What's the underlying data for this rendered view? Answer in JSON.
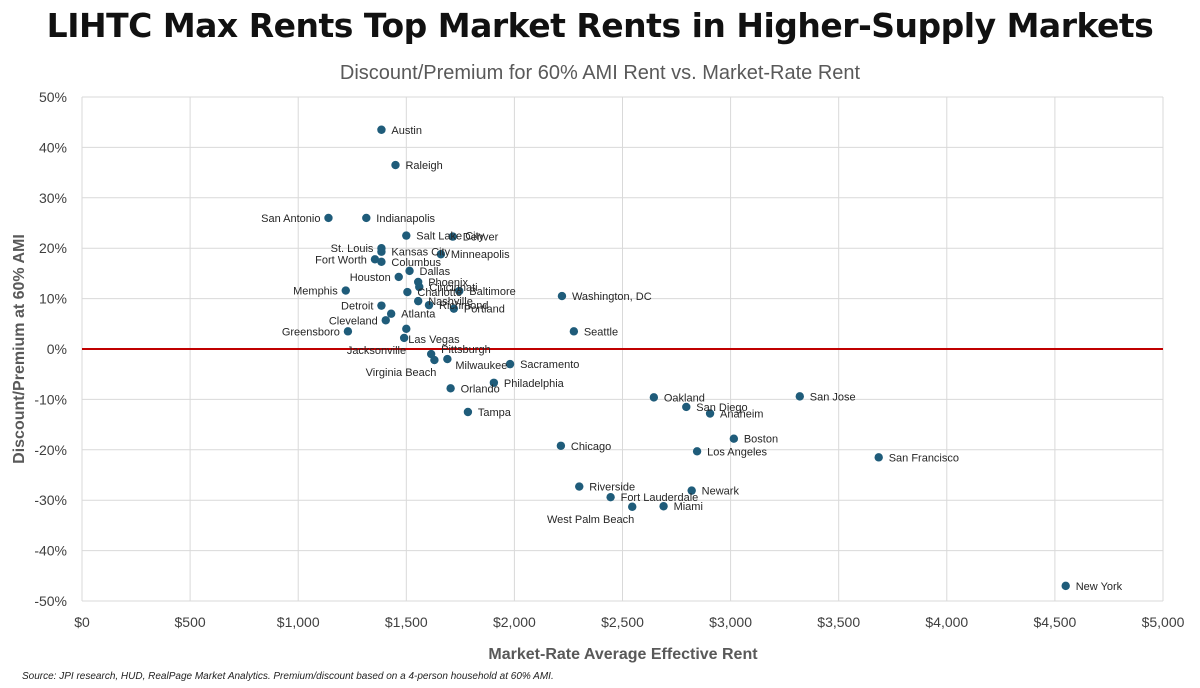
{
  "chart_data": {
    "type": "scatter",
    "title": "LIHTC Max Rents Top Market Rents in Higher-Supply Markets",
    "subtitle": "Discount/Premium for 60% AMI Rent vs. Market-Rate Rent",
    "xlabel": "Market-Rate Average Effective Rent",
    "ylabel": "Discount/Premium at 60% AMI",
    "xlim": [
      0,
      5000
    ],
    "ylim": [
      -50,
      50
    ],
    "x_ticks": [
      0,
      500,
      1000,
      1500,
      2000,
      2500,
      3000,
      3500,
      4000,
      4500,
      5000
    ],
    "x_tick_labels": [
      "$0",
      "$500",
      "$1,000",
      "$1,500",
      "$2,000",
      "$2,500",
      "$3,000",
      "$3,500",
      "$4,000",
      "$4,500",
      "$5,000"
    ],
    "y_ticks": [
      50,
      40,
      30,
      20,
      10,
      0,
      -10,
      -20,
      -30,
      -40,
      -50
    ],
    "y_tick_labels": [
      "50%",
      "40%",
      "30%",
      "20%",
      "10%",
      "0%",
      "-10%",
      "-20%",
      "-30%",
      "-40%",
      "-50%"
    ],
    "grid": true,
    "reference_line": {
      "y": 0,
      "color": "#C00000"
    },
    "marker_color": "#1F5C7A",
    "points": [
      {
        "name": "Austin",
        "x": 1385,
        "y": 43.5
      },
      {
        "name": "Raleigh",
        "x": 1450,
        "y": 36.5
      },
      {
        "name": "San Antonio",
        "x": 1140,
        "y": 26.0
      },
      {
        "name": "Indianapolis",
        "x": 1315,
        "y": 26.0
      },
      {
        "name": "Salt Lake City",
        "x": 1500,
        "y": 22.5
      },
      {
        "name": "Denver",
        "x": 1715,
        "y": 22.3
      },
      {
        "name": "St. Louis",
        "x": 1385,
        "y": 20.0
      },
      {
        "name": "Kansas City",
        "x": 1385,
        "y": 19.3
      },
      {
        "name": "Minneapolis",
        "x": 1660,
        "y": 18.8
      },
      {
        "name": "Fort Worth",
        "x": 1355,
        "y": 17.8
      },
      {
        "name": "Columbus",
        "x": 1385,
        "y": 17.3
      },
      {
        "name": "Dallas",
        "x": 1515,
        "y": 15.5
      },
      {
        "name": "Houston",
        "x": 1465,
        "y": 14.3
      },
      {
        "name": "Phoenix",
        "x": 1555,
        "y": 13.3
      },
      {
        "name": "Cincinnati",
        "x": 1560,
        "y": 12.3
      },
      {
        "name": "Memphis",
        "x": 1220,
        "y": 11.6
      },
      {
        "name": "Baltimore",
        "x": 1745,
        "y": 11.5
      },
      {
        "name": "Charlotte",
        "x": 1505,
        "y": 11.3
      },
      {
        "name": "Washington, DC",
        "x": 2220,
        "y": 10.5
      },
      {
        "name": "Nashville",
        "x": 1555,
        "y": 9.5
      },
      {
        "name": "Richmond",
        "x": 1605,
        "y": 8.7
      },
      {
        "name": "Detroit",
        "x": 1385,
        "y": 8.6
      },
      {
        "name": "Portland",
        "x": 1720,
        "y": 8.0
      },
      {
        "name": "Atlanta",
        "x": 1430,
        "y": 7.0
      },
      {
        "name": "Cleveland",
        "x": 1405,
        "y": 5.7
      },
      {
        "name": "Las Vegas",
        "x": 1500,
        "y": 4.0
      },
      {
        "name": "Seattle",
        "x": 2275,
        "y": 3.5
      },
      {
        "name": "Greensboro",
        "x": 1230,
        "y": 3.5
      },
      {
        "name": "Jacksonville",
        "x": 1490,
        "y": 2.2
      },
      {
        "name": "Pittsburgh",
        "x": 1615,
        "y": -1.0
      },
      {
        "name": "Virginia Beach",
        "x": 1630,
        "y": -2.2
      },
      {
        "name": "Milwaukee",
        "x": 1690,
        "y": -2.0
      },
      {
        "name": "Sacramento",
        "x": 1980,
        "y": -3.0
      },
      {
        "name": "Philadelphia",
        "x": 1905,
        "y": -6.7
      },
      {
        "name": "Orlando",
        "x": 1705,
        "y": -7.8
      },
      {
        "name": "Oakland",
        "x": 2645,
        "y": -9.6
      },
      {
        "name": "San Jose",
        "x": 3320,
        "y": -9.4
      },
      {
        "name": "San Diego",
        "x": 2795,
        "y": -11.5
      },
      {
        "name": "Anaheim",
        "x": 2905,
        "y": -12.8
      },
      {
        "name": "Tampa",
        "x": 1785,
        "y": -12.5
      },
      {
        "name": "Boston",
        "x": 3015,
        "y": -17.8
      },
      {
        "name": "Chicago",
        "x": 2215,
        "y": -19.2
      },
      {
        "name": "Los Angeles",
        "x": 2845,
        "y": -20.3
      },
      {
        "name": "San Francisco",
        "x": 3685,
        "y": -21.5
      },
      {
        "name": "Riverside",
        "x": 2300,
        "y": -27.3
      },
      {
        "name": "Newark",
        "x": 2820,
        "y": -28.1
      },
      {
        "name": "Fort Lauderdale",
        "x": 2445,
        "y": -29.4
      },
      {
        "name": "West Palm Beach",
        "x": 2545,
        "y": -31.3
      },
      {
        "name": "Miami",
        "x": 2690,
        "y": -31.2
      },
      {
        "name": "New York",
        "x": 4550,
        "y": -47.0
      }
    ]
  },
  "source_note": "Source: JPI research, HUD, RealPage Market Analytics. Premium/discount based on a 4-person household at 60% AMI."
}
